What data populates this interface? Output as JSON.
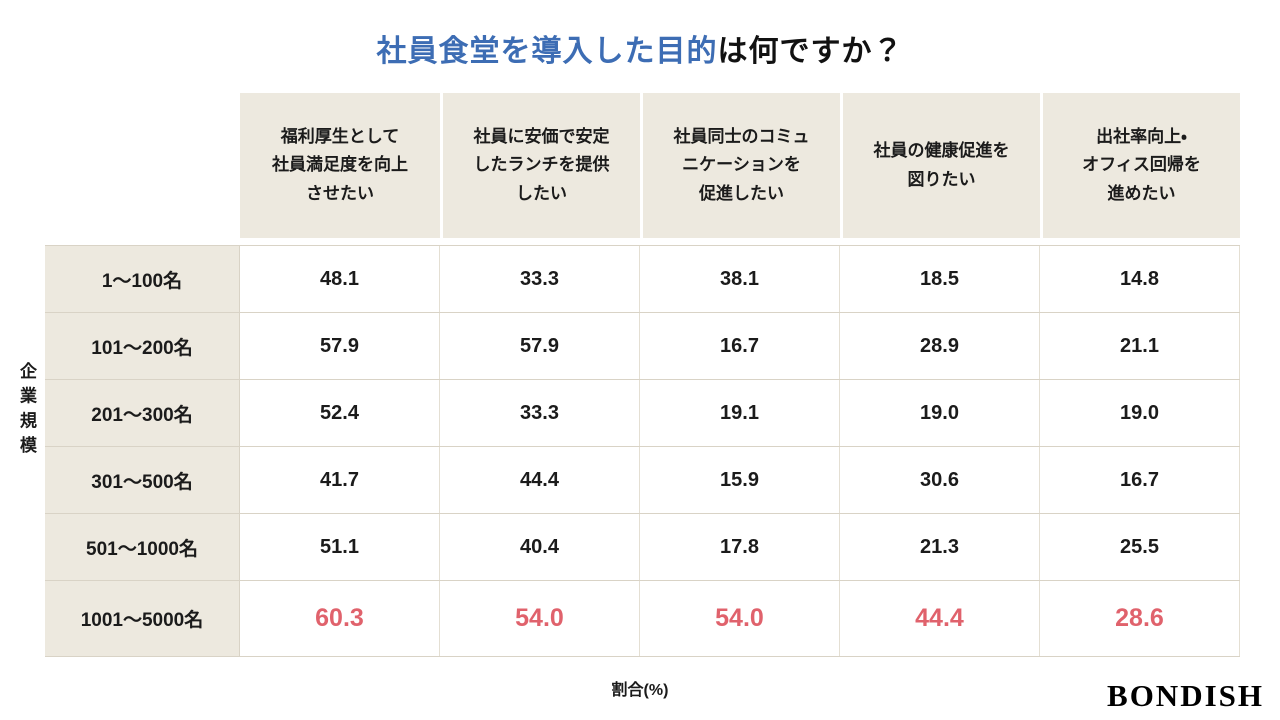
{
  "title": {
    "highlight": "社員食堂を導入した目的",
    "suffix": "は何ですか？"
  },
  "colors": {
    "title_blue": "#3D6DB4",
    "header_bg": "#EDE9DF",
    "border_col": "#D9D3C6",
    "highlight_red": "#E0626C"
  },
  "axis": {
    "row_axis_label": "企業規模",
    "value_axis_label": "割合(%)"
  },
  "logo": "BONDISH",
  "table": {
    "column_headers": [
      "福利厚生として\n社員満足度を向上\nさせたい",
      "社員に安価で安定\nしたランチを提供\nしたい",
      "社員同士のコミュ\nニケーションを\n促進したい",
      "社員の健康促進を\n図りたい",
      "出社率向上・\nオフィス回帰を\n進めたい"
    ],
    "rows": [
      {
        "label": "1〜100名",
        "values": [
          "48.1",
          "33.3",
          "38.1",
          "18.5",
          "14.8"
        ]
      },
      {
        "label": "101〜200名",
        "values": [
          "57.9",
          "57.9",
          "16.7",
          "28.9",
          "21.1"
        ]
      },
      {
        "label": "201〜300名",
        "values": [
          "52.4",
          "33.3",
          "19.1",
          "19.0",
          "19.0"
        ]
      },
      {
        "label": "301〜500名",
        "values": [
          "41.7",
          "44.4",
          "15.9",
          "30.6",
          "16.7"
        ]
      },
      {
        "label": "501〜1000名",
        "values": [
          "51.1",
          "40.4",
          "17.8",
          "21.3",
          "25.5"
        ]
      },
      {
        "label": "1001〜5000名",
        "values": [
          "60.3",
          "54.0",
          "54.0",
          "44.4",
          "28.6"
        ]
      }
    ]
  },
  "chart_data": {
    "type": "table",
    "title": "社員食堂を導入した目的は何ですか？",
    "xlabel": "割合(%)",
    "ylabel": "企業規模",
    "columns": [
      "福利厚生として社員満足度を向上させたい",
      "社員に安価で安定したランチを提供したい",
      "社員同士のコミュニケーションを促進したい",
      "社員の健康促進を図りたい",
      "出社率向上・オフィス回帰を進めたい"
    ],
    "row_categories": [
      "1〜100名",
      "101〜200名",
      "201〜300名",
      "301〜500名",
      "501〜1000名",
      "1001〜5000名"
    ],
    "values": [
      [
        48.1,
        33.3,
        38.1,
        18.5,
        14.8
      ],
      [
        57.9,
        57.9,
        16.7,
        28.9,
        21.1
      ],
      [
        52.4,
        33.3,
        19.1,
        19.0,
        19.0
      ],
      [
        41.7,
        44.4,
        15.9,
        30.6,
        16.7
      ],
      [
        51.1,
        40.4,
        17.8,
        21.3,
        25.5
      ],
      [
        60.3,
        54.0,
        54.0,
        44.4,
        28.6
      ]
    ],
    "highlighted_row": "1001〜5000名",
    "unit": "%"
  }
}
